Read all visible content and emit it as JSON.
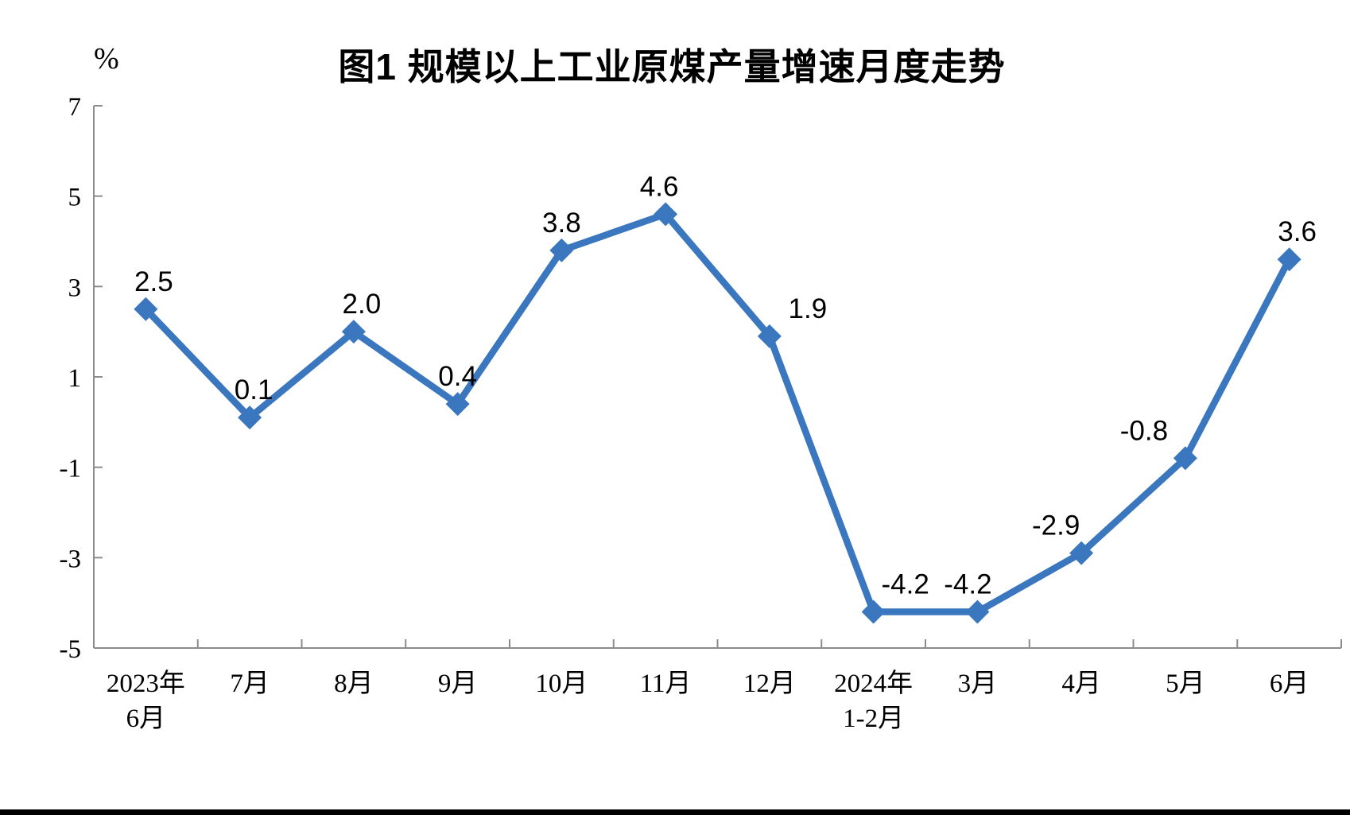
{
  "chart_data": {
    "type": "line",
    "title": "图1 规模以上工业原煤产量增速月度走势",
    "ylabel": "%",
    "xlabel": "",
    "ylim": [
      -5,
      7
    ],
    "y_ticks": [
      7,
      5,
      3,
      1,
      -1,
      -3,
      -5
    ],
    "grid": "off",
    "legend": "none",
    "categories": [
      {
        "line1": "2023年",
        "line2": "6月"
      },
      {
        "line1": "7月",
        "line2": ""
      },
      {
        "line1": "8月",
        "line2": ""
      },
      {
        "line1": "9月",
        "line2": ""
      },
      {
        "line1": "10月",
        "line2": ""
      },
      {
        "line1": "11月",
        "line2": ""
      },
      {
        "line1": "12月",
        "line2": ""
      },
      {
        "line1": "2024年",
        "line2": "1-2月"
      },
      {
        "line1": "3月",
        "line2": ""
      },
      {
        "line1": "4月",
        "line2": ""
      },
      {
        "line1": "5月",
        "line2": ""
      },
      {
        "line1": "6月",
        "line2": ""
      }
    ],
    "values": [
      2.5,
      0.1,
      2.0,
      0.4,
      3.8,
      4.6,
      1.9,
      -4.2,
      -4.2,
      -2.9,
      -0.8,
      3.6
    ],
    "value_labels": [
      "2.5",
      "0.1",
      "2.0",
      "0.4",
      "3.8",
      "4.6",
      "1.9",
      "-4.2",
      "-4.2",
      "-2.9",
      "-0.8",
      "3.6"
    ],
    "label_dx": [
      10,
      5,
      10,
      0,
      0,
      -8,
      48,
      40,
      -12,
      -32,
      -52,
      10
    ],
    "marker": "diamond",
    "line_color": "#3A77BE",
    "axis_color": "#8C8C8C",
    "text_color": "#000000"
  }
}
